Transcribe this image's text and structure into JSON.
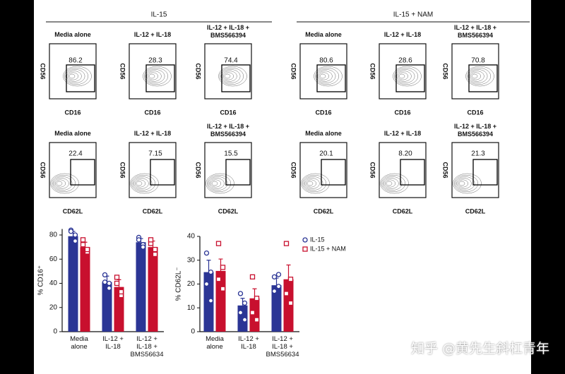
{
  "flow_panels": {
    "groups": [
      {
        "title": "IL-15",
        "rows": [
          {
            "x_label": "CD16",
            "y_label": "CD56",
            "panels": [
              {
                "title": "Media alone",
                "gate": "86.2"
              },
              {
                "title": "IL-12 + IL-18",
                "gate": "28.3"
              },
              {
                "title": "IL-12 + IL-18 +\nBMS566394",
                "gate": "74.4"
              }
            ]
          },
          {
            "x_label": "CD62L",
            "y_label": "CD56",
            "panels": [
              {
                "title": "Media alone",
                "gate": "22.4"
              },
              {
                "title": "IL-12 + IL-18",
                "gate": "7.15"
              },
              {
                "title": "IL-12 + IL-18 +\nBMS566394",
                "gate": "15.5"
              }
            ]
          }
        ]
      },
      {
        "title": "IL-15 + NAM",
        "rows": [
          {
            "x_label": "CD16",
            "y_label": "CD56",
            "panels": [
              {
                "title": "Media alone",
                "gate": "80.6"
              },
              {
                "title": "IL-12 + IL-18",
                "gate": "28.6"
              },
              {
                "title": "IL-12 + IL-18 +\nBMS566394",
                "gate": "70.8"
              }
            ]
          },
          {
            "x_label": "CD62L",
            "y_label": "CD56",
            "panels": [
              {
                "title": "Media alone",
                "gate": "20.1"
              },
              {
                "title": "IL-12 + IL-18",
                "gate": "8.20"
              },
              {
                "title": "IL-12 + IL-18 +\nBMS566394",
                "gate": "21.3"
              }
            ]
          }
        ]
      }
    ]
  },
  "chart_data": [
    {
      "type": "bar",
      "y_label": "% CD16⁺",
      "categories": [
        "Media\nalone",
        "IL-12 +\nIL-18",
        "IL-12 +\nIL-18 +\nBMS56634"
      ],
      "ylim": [
        0,
        85
      ],
      "yticks": [
        0,
        20,
        40,
        60,
        80
      ],
      "legend": false,
      "series": [
        {
          "name": "IL-15",
          "color": "#2b3595",
          "values": [
            79,
            41,
            74
          ],
          "errors": [
            4,
            5,
            3
          ],
          "points": [
            [
              84,
              80,
              83,
              75
            ],
            [
              47,
              36,
              41,
              40
            ],
            [
              78,
              72,
              76,
              70
            ]
          ]
        },
        {
          "name": "IL-15 + NAM",
          "color": "#c8102e",
          "values": [
            70,
            37,
            70
          ],
          "errors": [
            4,
            6,
            5
          ],
          "points": [
            [
              76,
              66,
              72,
              68
            ],
            [
              45,
              30,
              40,
              33
            ],
            [
              73,
              64,
              76,
              68
            ]
          ]
        }
      ]
    },
    {
      "type": "bar",
      "y_label": "% CD62L⁻",
      "categories": [
        "Media\nalone",
        "IL-12 +\nIL-18",
        "IL-12 +\nIL-18 +\nBMS56634"
      ],
      "ylim": [
        0,
        40
      ],
      "yticks": [
        0,
        10,
        20,
        30,
        40
      ],
      "legend": "right",
      "series": [
        {
          "name": "IL-15",
          "color": "#2b3595",
          "values": [
            25,
            11,
            19.5
          ],
          "errors": [
            5,
            3,
            3
          ],
          "points": [
            [
              33,
              25,
              20,
              13
            ],
            [
              16,
              12,
              8,
              5
            ],
            [
              23,
              19,
              17,
              24
            ]
          ]
        },
        {
          "name": "IL-15 + NAM",
          "color": "#c8102e",
          "values": [
            25.5,
            14,
            22
          ],
          "errors": [
            5,
            4,
            6
          ],
          "points": [
            [
              37,
              27,
              22,
              18
            ],
            [
              23,
              14,
              8,
              5
            ],
            [
              37,
              22,
              16,
              12
            ]
          ]
        }
      ]
    }
  ],
  "watermark": "知乎 @黄先生斜杠青年"
}
